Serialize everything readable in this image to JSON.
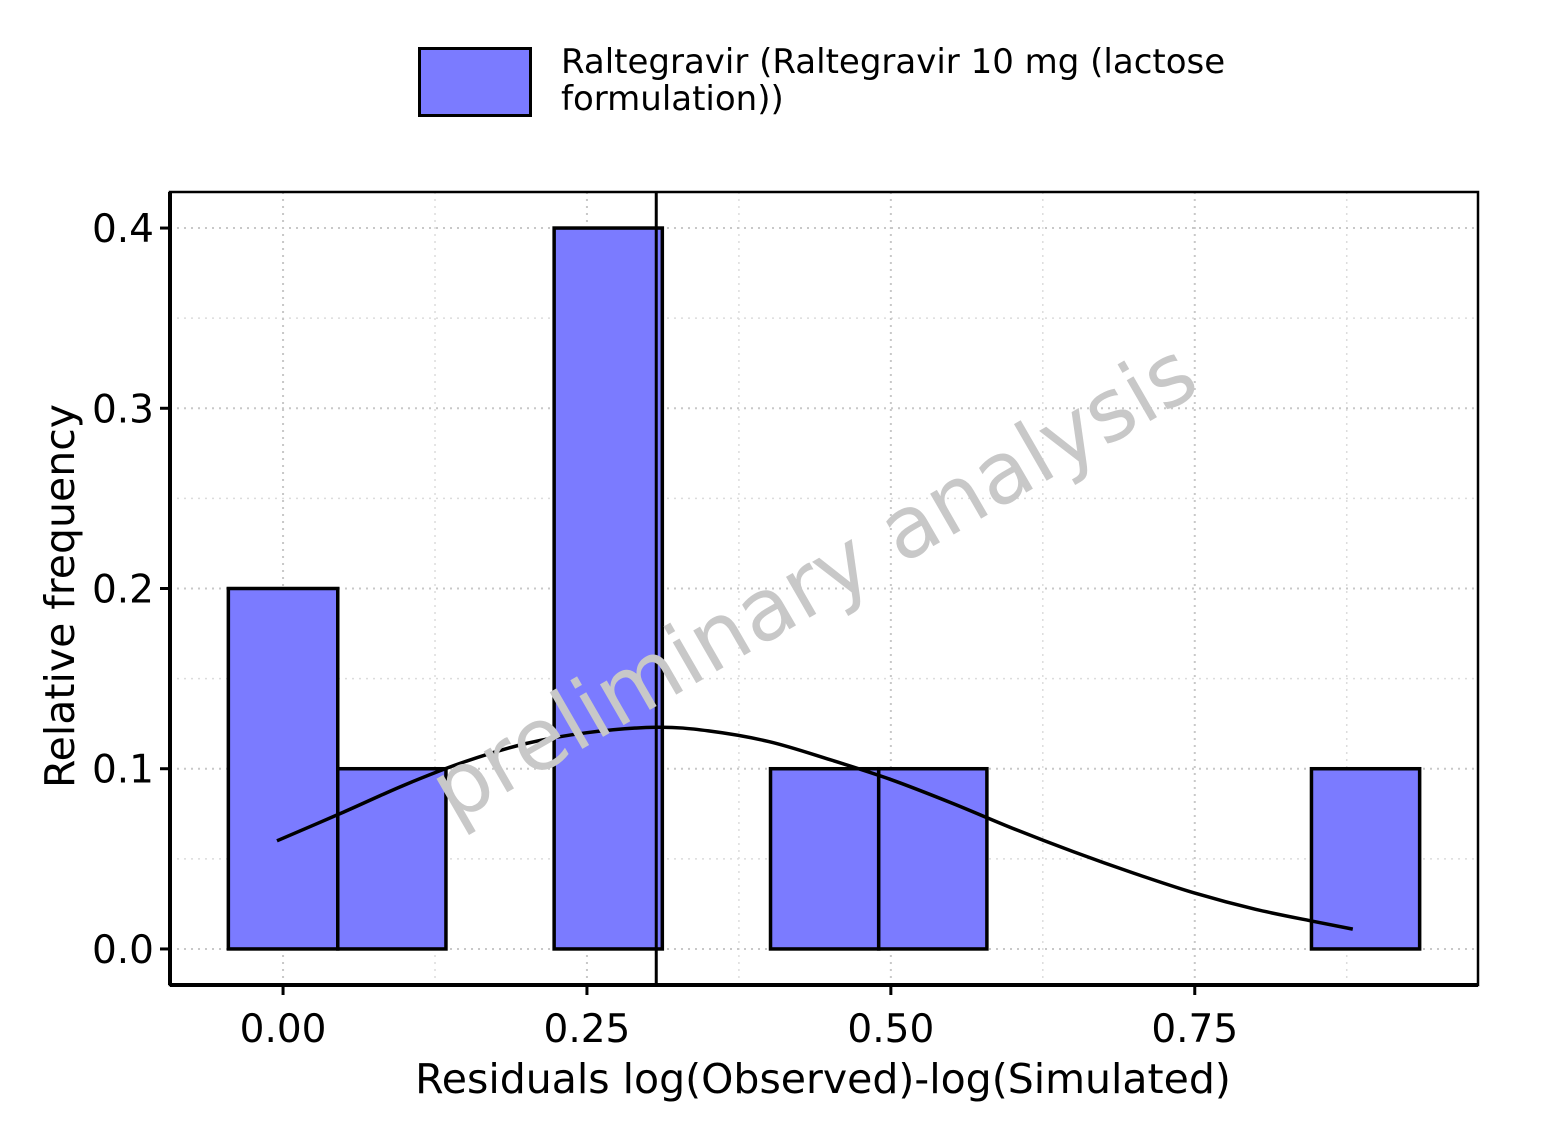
{
  "legend": {
    "entries": [
      {
        "label": "Raltegravir (Raltegravir 10 mg (lactose formulation))",
        "color": "#7b7bff"
      }
    ]
  },
  "watermark": "preliminary analysis",
  "chart_data": {
    "type": "bar",
    "xlabel": "Residuals log(Observed)-log(Simulated)",
    "ylabel": "Relative frequency",
    "xlim": [
      -0.093,
      0.983
    ],
    "ylim": [
      -0.02,
      0.42
    ],
    "x_ticks": [
      0.0,
      0.25,
      0.5,
      0.75
    ],
    "x_tick_labels": [
      "0.00",
      "0.25",
      "0.50",
      "0.75"
    ],
    "y_ticks": [
      0.0,
      0.1,
      0.2,
      0.3,
      0.4
    ],
    "y_tick_labels": [
      "0.0",
      "0.1",
      "0.2",
      "0.3",
      "0.4"
    ],
    "grid": true,
    "legend_position": "top",
    "bars": [
      {
        "x_start": -0.045,
        "x_end": 0.045,
        "value": 0.2
      },
      {
        "x_start": 0.045,
        "x_end": 0.134,
        "value": 0.1
      },
      {
        "x_start": 0.223,
        "x_end": 0.312,
        "value": 0.4
      },
      {
        "x_start": 0.401,
        "x_end": 0.49,
        "value": 0.1
      },
      {
        "x_start": 0.49,
        "x_end": 0.579,
        "value": 0.1
      },
      {
        "x_start": 0.846,
        "x_end": 0.935,
        "value": 0.1
      }
    ],
    "bar_color": "#7b7bff",
    "mean_line_x": 0.307,
    "density_curve": {
      "x": [
        -0.005,
        0.05,
        0.1,
        0.15,
        0.2,
        0.25,
        0.307,
        0.35,
        0.4,
        0.45,
        0.5,
        0.55,
        0.6,
        0.65,
        0.7,
        0.75,
        0.8,
        0.85,
        0.88
      ],
      "y": [
        0.06,
        0.076,
        0.091,
        0.104,
        0.114,
        0.12,
        0.123,
        0.121,
        0.115,
        0.105,
        0.094,
        0.081,
        0.067,
        0.054,
        0.042,
        0.031,
        0.022,
        0.015,
        0.011
      ]
    }
  }
}
